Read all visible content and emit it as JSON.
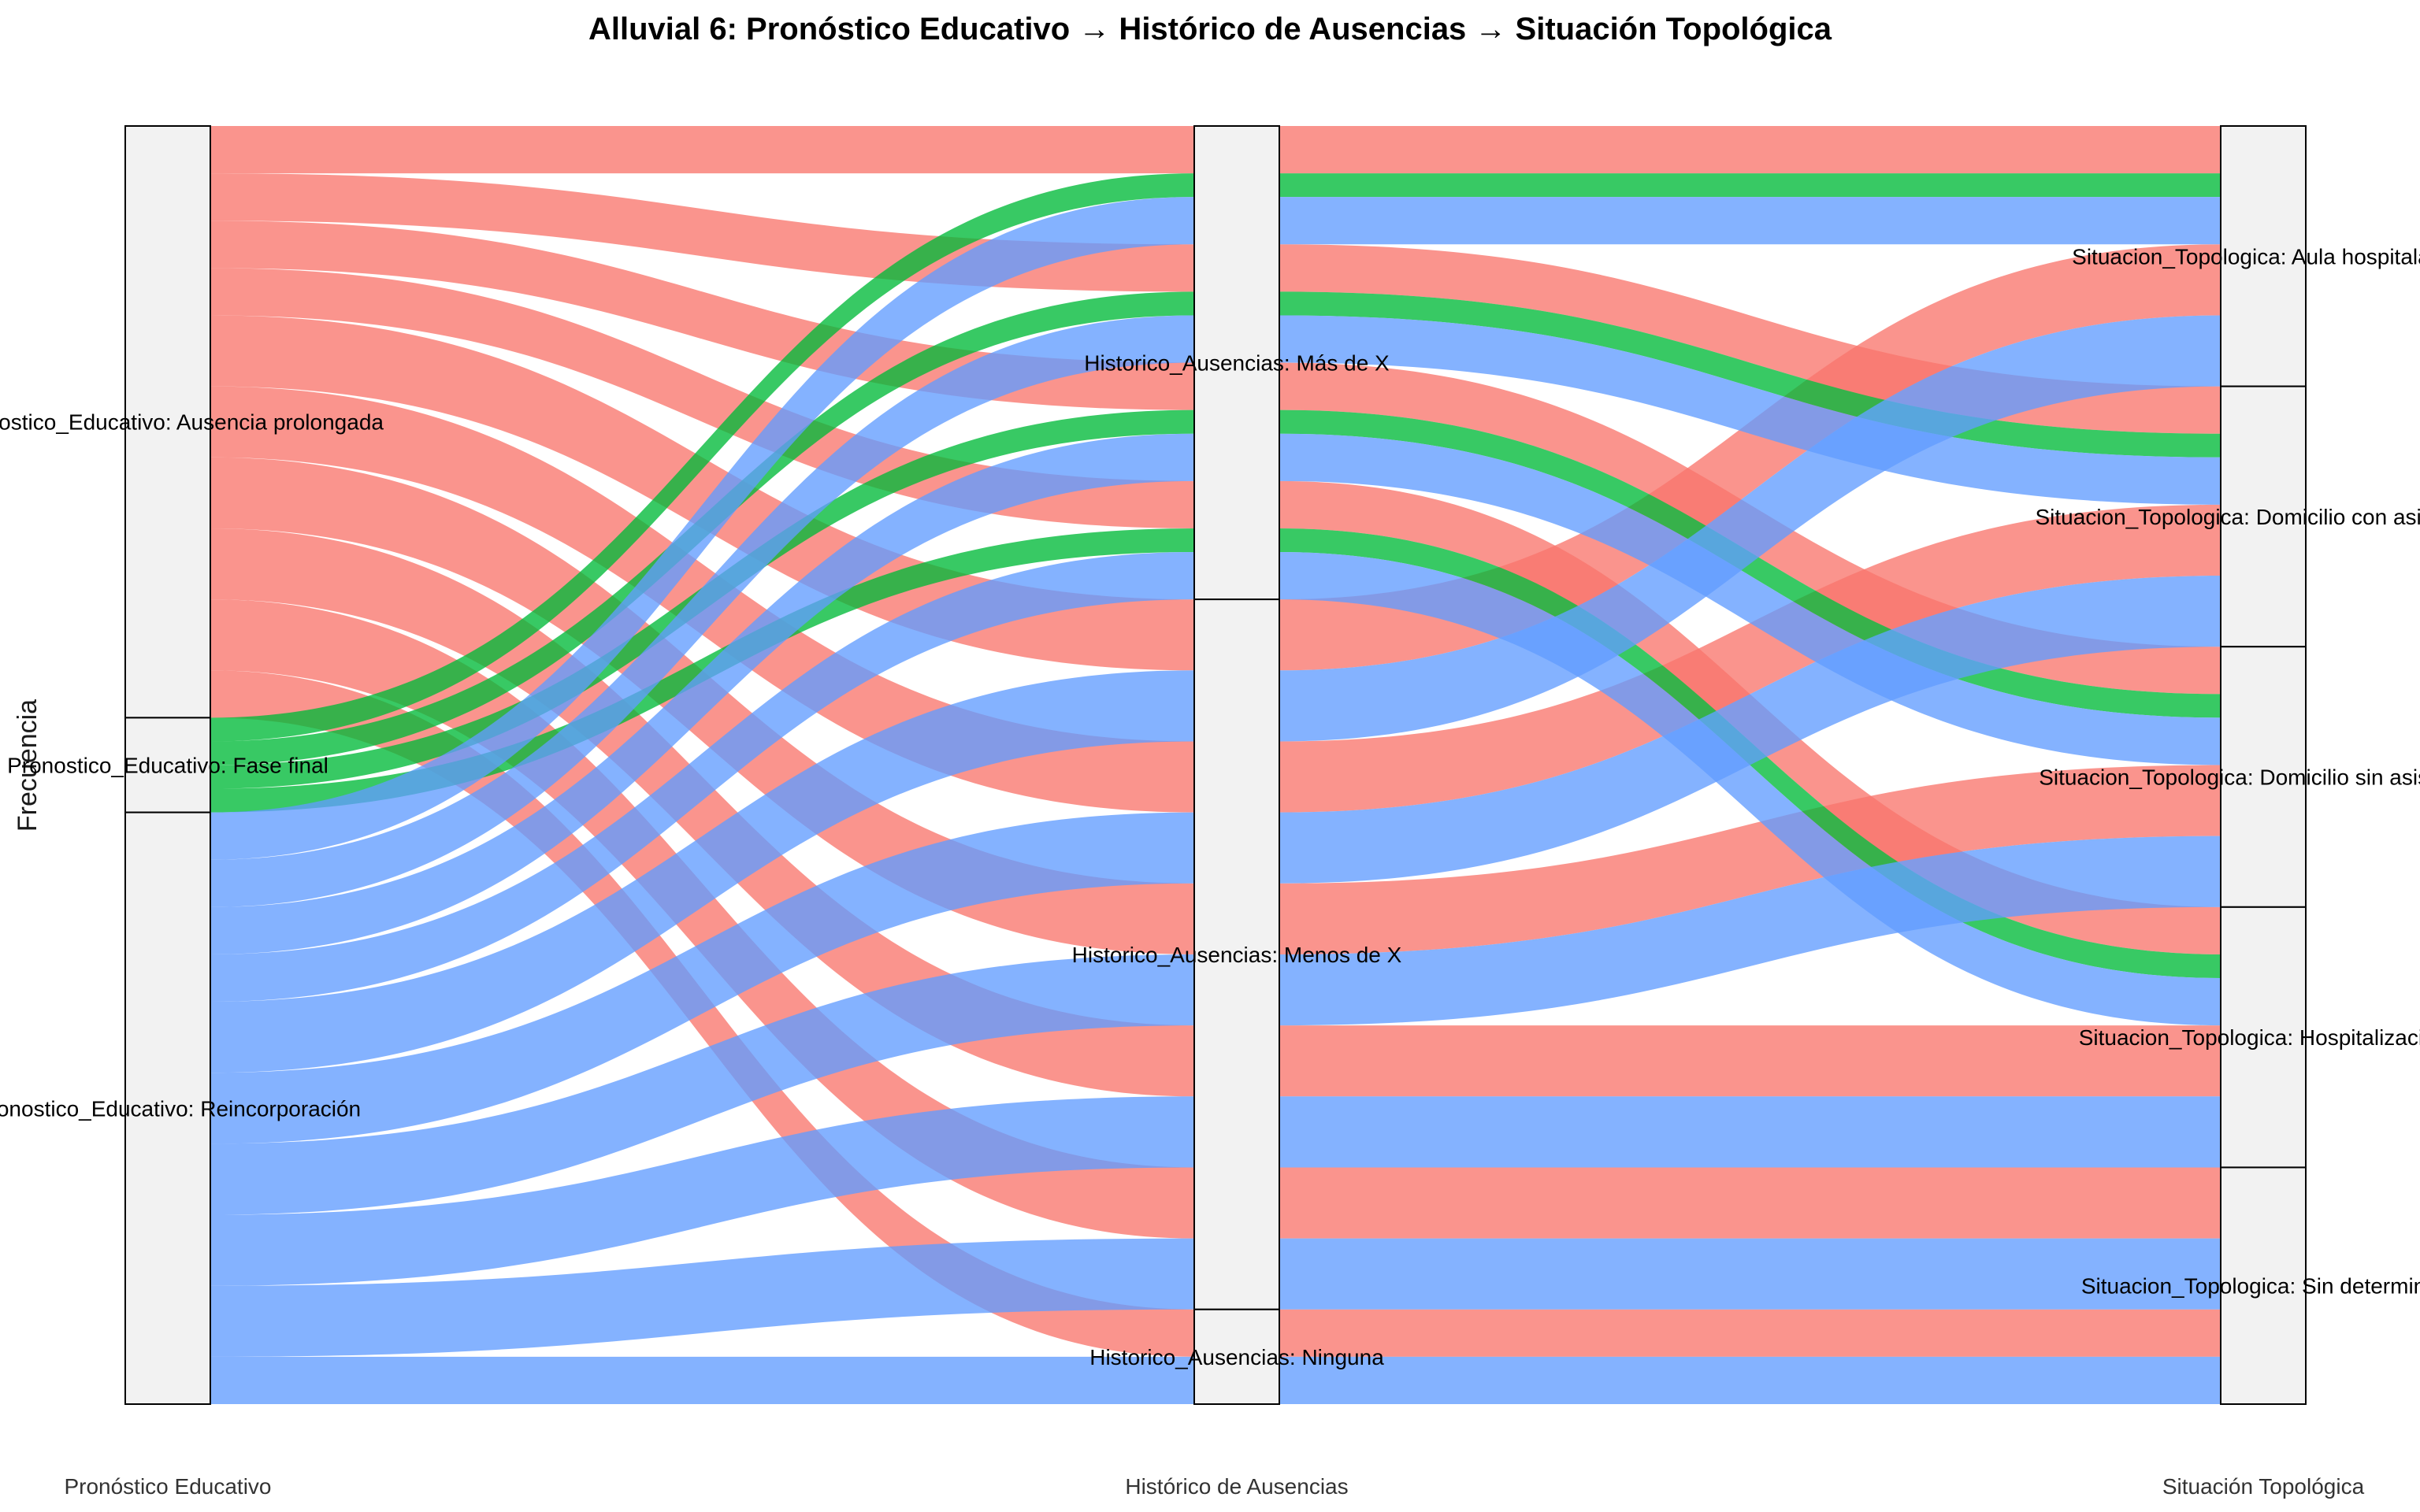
{
  "chart_data": {
    "type": "alluvial",
    "title": "Alluvial 6: Pronóstico Educativo → Histórico de Ausencias → Situación Topológica",
    "ylabel": "Frecuencia",
    "axes": [
      "Pronóstico Educativo",
      "Histórico de Ausencias",
      "Situación Topológica"
    ],
    "strata": [
      [
        {
          "name": "Ausencia prolongada",
          "label": "Pronostico_Educativo: Ausencia prolongada"
        },
        {
          "name": "Fase final",
          "label": "Pronostico_Educativo: Fase final"
        },
        {
          "name": "Reincorporación",
          "label": "Pronostico_Educativo: Reincorporación"
        }
      ],
      [
        {
          "name": "Más de X",
          "label": "Historico_Ausencias: Más de X"
        },
        {
          "name": "Menos de X",
          "label": "Historico_Ausencias: Menos de X"
        },
        {
          "name": "Ninguna",
          "label": "Historico_Ausencias: Ninguna"
        }
      ],
      [
        {
          "name": "Aula hospitalaria",
          "label": "Situacion_Topologica: Aula hospitalaria"
        },
        {
          "name": "Domicilio con asistencia",
          "label": "Situacion_Topologica: Domicilio con asistencia"
        },
        {
          "name": "Domicilio sin asistencia",
          "label": "Situacion_Topologica: Domicilio sin asistencia"
        },
        {
          "name": "Hospitalización",
          "label": "Situacion_Topologica: Hospitalización"
        },
        {
          "name": "Sin determinar",
          "label": "Situacion_Topologica: Sin determinar"
        }
      ]
    ],
    "series_colors": {
      "Ausencia prolongada": "#F8766D",
      "Fase final": "#00BA38",
      "Reincorporación": "#619CFF"
    },
    "flows": [
      {
        "path": [
          "Ausencia prolongada",
          "Más de X",
          "Aula hospitalaria"
        ],
        "value": 2
      },
      {
        "path": [
          "Ausencia prolongada",
          "Más de X",
          "Domicilio con asistencia"
        ],
        "value": 2
      },
      {
        "path": [
          "Ausencia prolongada",
          "Más de X",
          "Domicilio sin asistencia"
        ],
        "value": 2
      },
      {
        "path": [
          "Ausencia prolongada",
          "Más de X",
          "Hospitalización"
        ],
        "value": 2
      },
      {
        "path": [
          "Ausencia prolongada",
          "Menos de X",
          "Aula hospitalaria"
        ],
        "value": 3
      },
      {
        "path": [
          "Ausencia prolongada",
          "Menos de X",
          "Domicilio con asistencia"
        ],
        "value": 3
      },
      {
        "path": [
          "Ausencia prolongada",
          "Menos de X",
          "Domicilio sin asistencia"
        ],
        "value": 3
      },
      {
        "path": [
          "Ausencia prolongada",
          "Menos de X",
          "Hospitalización"
        ],
        "value": 3
      },
      {
        "path": [
          "Ausencia prolongada",
          "Menos de X",
          "Sin determinar"
        ],
        "value": 3
      },
      {
        "path": [
          "Ausencia prolongada",
          "Ninguna",
          "Sin determinar"
        ],
        "value": 2
      },
      {
        "path": [
          "Fase final",
          "Más de X",
          "Aula hospitalaria"
        ],
        "value": 1
      },
      {
        "path": [
          "Fase final",
          "Más de X",
          "Domicilio con asistencia"
        ],
        "value": 1
      },
      {
        "path": [
          "Fase final",
          "Más de X",
          "Domicilio sin asistencia"
        ],
        "value": 1
      },
      {
        "path": [
          "Fase final",
          "Más de X",
          "Hospitalización"
        ],
        "value": 1
      },
      {
        "path": [
          "Reincorporación",
          "Más de X",
          "Aula hospitalaria"
        ],
        "value": 2
      },
      {
        "path": [
          "Reincorporación",
          "Más de X",
          "Domicilio con asistencia"
        ],
        "value": 2
      },
      {
        "path": [
          "Reincorporación",
          "Más de X",
          "Domicilio sin asistencia"
        ],
        "value": 2
      },
      {
        "path": [
          "Reincorporación",
          "Más de X",
          "Hospitalización"
        ],
        "value": 2
      },
      {
        "path": [
          "Reincorporación",
          "Menos de X",
          "Aula hospitalaria"
        ],
        "value": 3
      },
      {
        "path": [
          "Reincorporación",
          "Menos de X",
          "Domicilio con asistencia"
        ],
        "value": 3
      },
      {
        "path": [
          "Reincorporación",
          "Menos de X",
          "Domicilio sin asistencia"
        ],
        "value": 3
      },
      {
        "path": [
          "Reincorporación",
          "Menos de X",
          "Hospitalización"
        ],
        "value": 3
      },
      {
        "path": [
          "Reincorporación",
          "Menos de X",
          "Sin determinar"
        ],
        "value": 3
      },
      {
        "path": [
          "Reincorporación",
          "Ninguna",
          "Sin determinar"
        ],
        "value": 2
      }
    ],
    "legend": "none",
    "grid": false
  }
}
